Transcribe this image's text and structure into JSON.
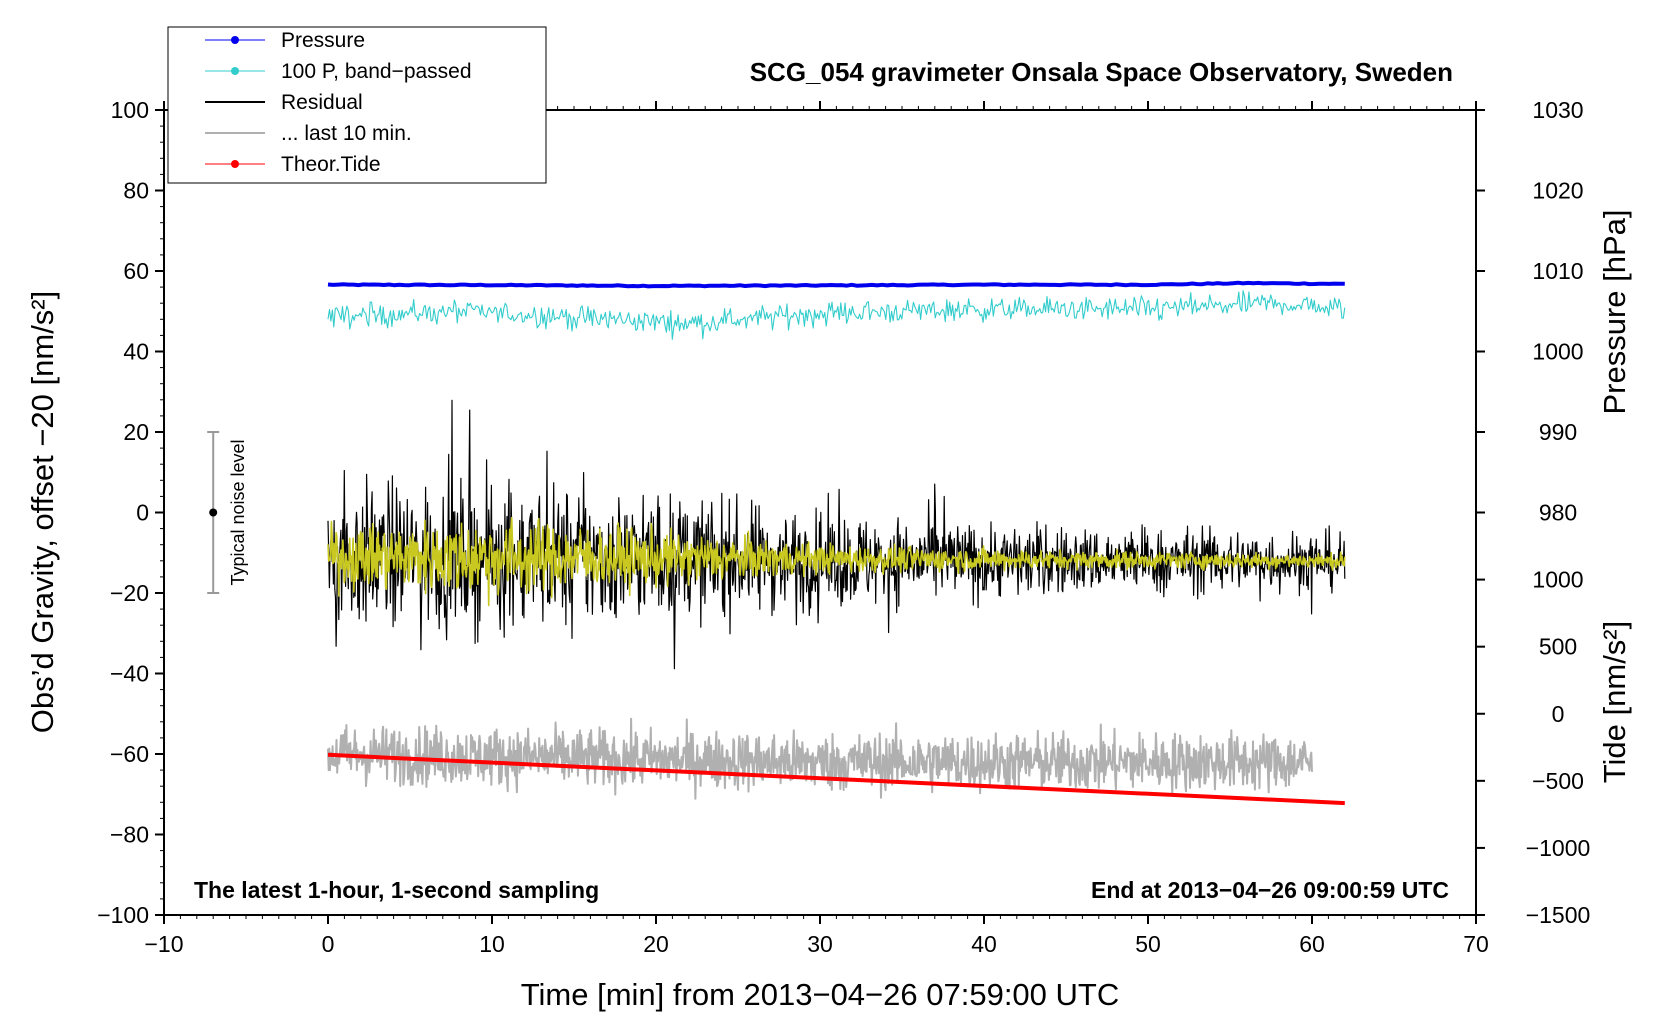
{
  "chart_data": {
    "type": "line",
    "title": "SCG_054 gravimeter Onsala Space Observatory, Sweden",
    "xlabel": "Time [min] from 2013−04−26 07:59:00 UTC",
    "ylabel": "Obs’d Gravity, offset −20 [nm/s²]",
    "ylabel_right_pressure": "Pressure [hPa]",
    "ylabel_right_tide": "Tide [nm/s²]",
    "annotation_left": "The latest 1-hour, 1-second sampling",
    "annotation_right": "End at 2013−04−26 09:00:59 UTC",
    "noise_label": "Typical noise level",
    "noise_bar": {
      "x": -7,
      "y": 0,
      "low": -20,
      "high": 20
    },
    "xlim": [
      -10,
      70
    ],
    "ylim": [
      -100,
      100
    ],
    "x_ticks": [
      -10,
      0,
      10,
      20,
      30,
      40,
      50,
      60,
      70
    ],
    "x_tick_labels": [
      "−10",
      "0",
      "10",
      "20",
      "30",
      "40",
      "50",
      "60",
      "70"
    ],
    "y_ticks": [
      -100,
      -80,
      -60,
      -40,
      -20,
      0,
      20,
      40,
      60,
      80,
      100
    ],
    "y_tick_labels": [
      "−100",
      "−80",
      "−60",
      "−40",
      "−20",
      "0",
      "20",
      "40",
      "60",
      "80",
      "100"
    ],
    "pressure_axis": {
      "ticks": [
        980,
        990,
        1000,
        1010,
        1020,
        1030
      ],
      "tick_labels": [
        "980",
        "990",
        "1000",
        "1010",
        "1020",
        "1030"
      ],
      "ref_value": 1000,
      "ref_gravity": 40,
      "gravity_per_unit": 2.0
    },
    "tide_axis": {
      "ticks": [
        -1500,
        -1000,
        -500,
        0,
        500,
        1000
      ],
      "tick_labels": [
        "−1500",
        "−1000",
        "−500",
        "0",
        "500",
        "1000"
      ],
      "ref_value": 0,
      "ref_gravity": -50,
      "gravity_per_unit": 0.0333333
    },
    "legend": [
      {
        "name": "Pressure",
        "color": "#0000ee",
        "marker": true
      },
      {
        "name": "100 P, band−passed",
        "color": "#33cccc",
        "marker": true
      },
      {
        "name": "Residual",
        "color": "#000000",
        "marker": false
      },
      {
        "name": "... last 10 min.",
        "color": "#b0b0b0",
        "marker": false
      },
      {
        "name": "Theor.Tide",
        "color": "#ff0000",
        "marker": true
      }
    ],
    "series": [
      {
        "name": "Pressure",
        "color": "#0000ee",
        "kind": "smooth",
        "x_start": 0,
        "x_end": 62,
        "x": [
          0,
          10,
          20,
          29,
          40,
          50,
          56,
          62
        ],
        "values": [
          56.6,
          56.5,
          56.3,
          56.4,
          56.6,
          56.6,
          57.0,
          56.8
        ]
      },
      {
        "name": "100 P, band-passed",
        "color": "#33cccc",
        "kind": "noisy",
        "x_start": 0,
        "x_end": 62,
        "x": [
          0,
          8,
          15,
          22,
          30,
          40,
          50,
          58,
          62
        ],
        "values": [
          48.5,
          50.0,
          48.5,
          47.0,
          49.5,
          50.5,
          50.5,
          52.0,
          50.5
        ],
        "amplitude": 3.2
      },
      {
        "name": "Residual",
        "color": "#000000",
        "kind": "noisy",
        "x_start": 0,
        "x_end": 62,
        "x": [
          0,
          15,
          32,
          62
        ],
        "values": [
          -11,
          -11,
          -12,
          -12
        ],
        "amp": [
          [
            0,
            20
          ],
          [
            15,
            19
          ],
          [
            30,
            13
          ],
          [
            45,
            9
          ],
          [
            62,
            8
          ]
        ]
      },
      {
        "name": "Residual (smoothed)",
        "color": "#c8c820",
        "kind": "noisy",
        "x_start": 0,
        "x_end": 62,
        "x": [
          0,
          62
        ],
        "values": [
          -11,
          -12
        ],
        "amp": [
          [
            0,
            8
          ],
          [
            10,
            11
          ],
          [
            15,
            9
          ],
          [
            22,
            7
          ],
          [
            30,
            4
          ],
          [
            45,
            2.5
          ],
          [
            62,
            2
          ]
        ]
      },
      {
        "name": "... last 10 min.",
        "color": "#b0b0b0",
        "kind": "noisy",
        "x_start": 0,
        "x_end": 60,
        "x": [
          0,
          30,
          60
        ],
        "values": [
          -60,
          -62,
          -62
        ],
        "amplitude": 8
      },
      {
        "name": "Theor.Tide",
        "color": "#ff0000",
        "kind": "line",
        "x_start": 0,
        "x_end": 62,
        "x": [
          0,
          62
        ],
        "values": [
          -60.2,
          -72.2
        ]
      }
    ]
  }
}
